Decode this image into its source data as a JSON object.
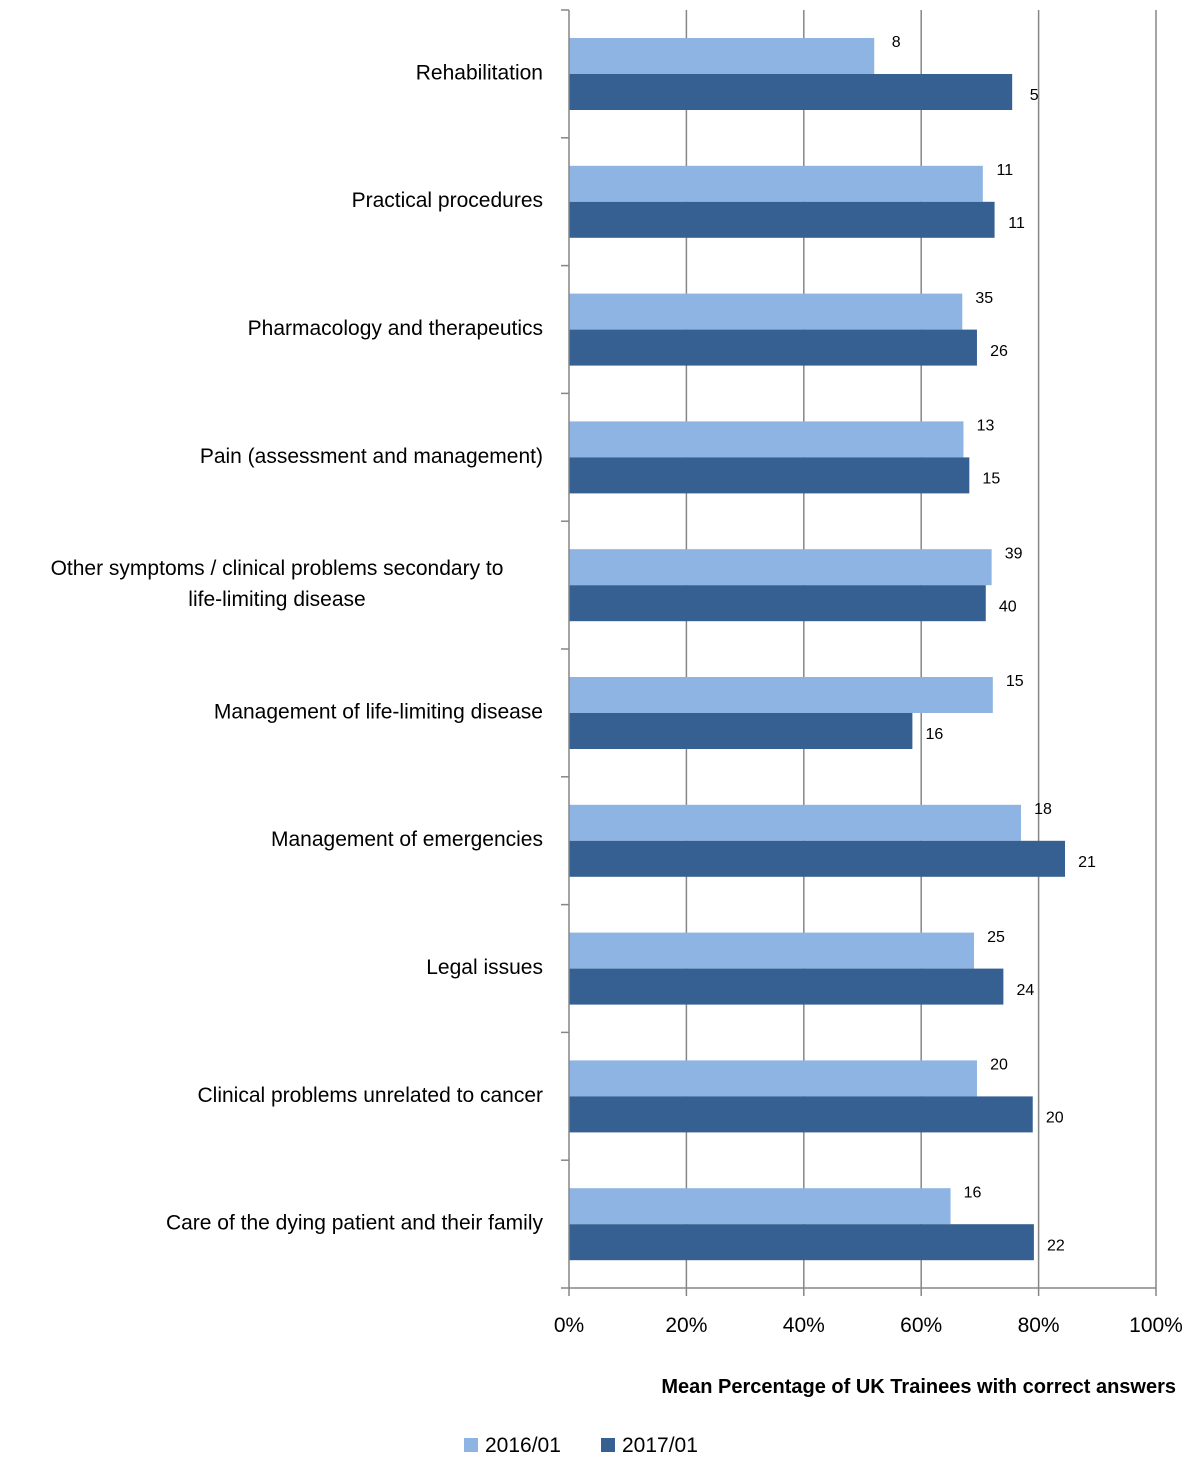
{
  "chart_data": {
    "type": "bar",
    "orientation": "horizontal",
    "categories": [
      "Rehabilitation",
      "Practical procedures",
      "Pharmacology and therapeutics",
      "Pain (assessment and management)",
      "Other symptoms / clinical problems secondary to life-limiting disease",
      "Management of life-limiting disease",
      "Management of emergencies",
      "Legal issues",
      "Clinical problems unrelated to cancer",
      "Care of the dying patient and their family"
    ],
    "category_lines": [
      [
        "Rehabilitation"
      ],
      [
        "Practical procedures"
      ],
      [
        "Pharmacology and therapeutics"
      ],
      [
        "Pain (assessment and management)"
      ],
      [
        "Other symptoms / clinical problems secondary to",
        "life-limiting disease"
      ],
      [
        "Management of life-limiting disease"
      ],
      [
        "Management of emergencies"
      ],
      [
        "Legal issues"
      ],
      [
        "Clinical problems unrelated to cancer"
      ],
      [
        "Care of the dying patient and their family"
      ]
    ],
    "series": [
      {
        "name": "2016/01",
        "color": "#8EB4E3",
        "values": [
          52,
          70.5,
          67,
          67.2,
          72,
          72.2,
          77,
          69,
          69.5,
          65
        ],
        "labels": [
          "8",
          "11",
          "35",
          "13",
          "39",
          "15",
          "18",
          "25",
          "20",
          "16"
        ]
      },
      {
        "name": "2017/01",
        "color": "#376092",
        "values": [
          75.5,
          72.5,
          69.5,
          68.2,
          71,
          58.5,
          84.5,
          74,
          79,
          79.2
        ],
        "labels": [
          "5",
          "11",
          "26",
          "15",
          "40",
          "16",
          "21",
          "24",
          "20",
          "22"
        ]
      }
    ],
    "xlim": [
      0,
      100
    ],
    "xticks": [
      "0%",
      "20%",
      "40%",
      "60%",
      "80%",
      "100%"
    ],
    "xlabel": "Mean Percentage of UK Trainees with correct answers",
    "ylabel": "",
    "title": "",
    "grid": "vertical",
    "legend": "bottom"
  }
}
